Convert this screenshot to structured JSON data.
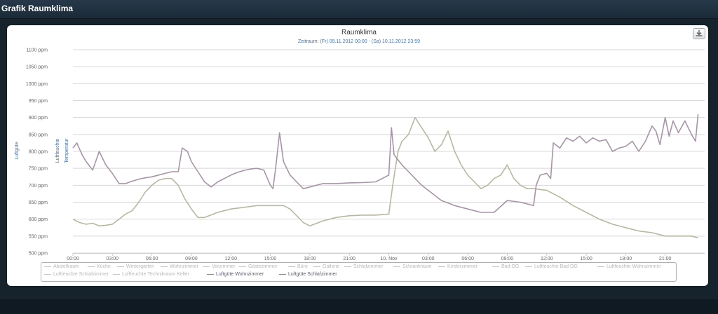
{
  "window": {
    "title": "Grafik Raumklima"
  },
  "chart_data": {
    "type": "line",
    "title": "Raumklima",
    "subtitle": "Zeitraum: (Fr) 09.11.2012 00:00 - (Sa) 10.11.2012 23:59",
    "ylabel": "Luftgüte",
    "y_extra_labels": [
      "Luftfeuchte",
      "Temperatur"
    ],
    "ylim": [
      500,
      1100
    ],
    "y_ticks": [
      500,
      550,
      600,
      650,
      700,
      750,
      800,
      850,
      900,
      950,
      1000,
      1050,
      1100
    ],
    "y_tick_labels": [
      "500 ppm",
      "550 ppm",
      "600 ppm",
      "650 ppm",
      "700 ppm",
      "750 ppm",
      "800 ppm",
      "850 ppm",
      "900 ppm",
      "950 ppm",
      "1000 ppm",
      "1050 ppm",
      "1100 ppm"
    ],
    "x_tick_labels": [
      "00:00",
      "03:00",
      "06:00",
      "09:00",
      "12:00",
      "15:00",
      "18:00",
      "21:00",
      "10. Nov",
      "03:00",
      "06:00",
      "09:00",
      "12:00",
      "15:00",
      "18:00",
      "21:00"
    ],
    "x_tick_hours": [
      0,
      3,
      6,
      9,
      12,
      15,
      18,
      21,
      24,
      27,
      30,
      33,
      36,
      39,
      42,
      45
    ],
    "xlim_hours": [
      0,
      48
    ],
    "grid": true,
    "legend_position": "bottom",
    "series": [
      {
        "name": "Luftgüte Wohnzimmer",
        "color": "#b8b8a0",
        "x": [
          0,
          0.5,
          1,
          1.5,
          2,
          2.5,
          3,
          3.5,
          4,
          4.5,
          5,
          5.5,
          6,
          6.5,
          7,
          7.5,
          8,
          8.5,
          9,
          9.5,
          10,
          11,
          12,
          13,
          14,
          15,
          16,
          16.5,
          17,
          17.5,
          18,
          19,
          20,
          21,
          22,
          23,
          24,
          24.3,
          24.7,
          25,
          25.5,
          26,
          26.5,
          27,
          27.5,
          28,
          28.5,
          29,
          29.5,
          30,
          30.5,
          31,
          31.5,
          32,
          32.5,
          33,
          33.5,
          34,
          34.5,
          35,
          36,
          37,
          38,
          39,
          40,
          41,
          42,
          43,
          44,
          45,
          46,
          47,
          47.5
        ],
        "values": [
          600,
          590,
          585,
          588,
          580,
          582,
          585,
          600,
          615,
          625,
          650,
          680,
          700,
          715,
          720,
          720,
          700,
          660,
          630,
          605,
          605,
          620,
          630,
          635,
          640,
          640,
          640,
          630,
          610,
          590,
          580,
          595,
          605,
          610,
          612,
          612,
          615,
          700,
          800,
          830,
          850,
          900,
          870,
          840,
          800,
          820,
          860,
          800,
          760,
          730,
          710,
          690,
          700,
          720,
          730,
          760,
          720,
          700,
          690,
          690,
          685,
          665,
          640,
          620,
          600,
          585,
          575,
          565,
          560,
          550,
          550,
          550,
          545
        ]
      },
      {
        "name": "Luftgüte Schlafzimmer",
        "color": "#a894a8",
        "x": [
          0,
          0.3,
          0.7,
          1,
          1.5,
          2,
          2.5,
          3,
          3.5,
          4,
          4.5,
          5,
          5.5,
          6,
          6.5,
          7,
          7.5,
          8,
          8.3,
          8.7,
          9,
          9.5,
          10,
          10.5,
          11,
          11.5,
          12,
          12.5,
          13,
          13.5,
          14,
          14.5,
          15,
          15.2,
          15.4,
          15.7,
          16,
          16.5,
          17,
          17.5,
          18,
          18.5,
          19,
          20,
          21,
          22,
          23,
          23.5,
          24,
          24.2,
          24.4,
          24.7,
          25,
          25.5,
          26,
          26.5,
          27,
          27.5,
          28,
          29,
          30,
          31,
          32,
          33,
          34,
          35,
          35.2,
          35.5,
          36,
          36.3,
          36.5,
          37,
          37.5,
          38,
          38.5,
          39,
          39.5,
          40,
          40.5,
          41,
          41.5,
          42,
          42.5,
          43,
          43.5,
          44,
          44.3,
          44.6,
          45,
          45.3,
          45.6,
          46,
          46.5,
          47,
          47.3,
          47.5
        ],
        "values": [
          810,
          825,
          790,
          770,
          745,
          800,
          760,
          735,
          705,
          705,
          712,
          718,
          722,
          725,
          730,
          735,
          740,
          740,
          810,
          800,
          770,
          740,
          710,
          695,
          710,
          720,
          730,
          738,
          744,
          748,
          750,
          745,
          700,
          690,
          750,
          855,
          770,
          730,
          710,
          690,
          695,
          700,
          705,
          705,
          707,
          708,
          710,
          720,
          730,
          870,
          790,
          775,
          760,
          740,
          720,
          700,
          685,
          670,
          655,
          640,
          630,
          620,
          620,
          655,
          650,
          640,
          700,
          730,
          735,
          720,
          825,
          810,
          840,
          830,
          845,
          825,
          840,
          830,
          835,
          800,
          810,
          815,
          830,
          800,
          830,
          875,
          860,
          820,
          900,
          845,
          890,
          855,
          890,
          850,
          830,
          910
        ]
      }
    ]
  },
  "legend": {
    "row1": [
      "Abstellraum",
      "Küche",
      "Wintergarten",
      "Wohnzimmer",
      "Vorzimmer",
      "Gästezimmer",
      "Büro",
      "Gallerie",
      "Schlafzimmer",
      "Schrankraum",
      "Kinderzimmer",
      "Bad OG",
      "Luftfeuchte Bad OG",
      "Luftfeuchte Wohnzimmer"
    ],
    "row2": [
      "Luftfeuchte Schlafzimmer",
      "Luftfeuchte Technikraum Keller",
      "Luftgüte Wohnzimmer",
      "Luftgüte Schlafzimmer"
    ]
  },
  "colors": {
    "grid": "#d8d8d8",
    "axis_text": "#666666",
    "title": "#333333",
    "subtitle": "#4572a7",
    "axis_title": "#4572a7"
  }
}
